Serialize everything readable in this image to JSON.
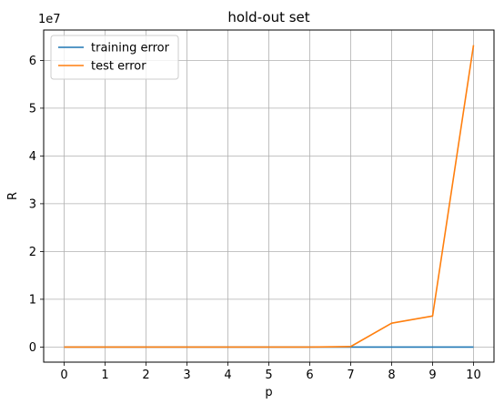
{
  "chart_data": {
    "type": "line",
    "title": "hold-out set",
    "xlabel": "p",
    "ylabel": "R",
    "y_offset_label": "1e7",
    "x": [
      0,
      1,
      2,
      3,
      4,
      5,
      6,
      7,
      8,
      9,
      10
    ],
    "series": [
      {
        "name": "training error",
        "color": "#1f77b4",
        "values": [
          0,
          0,
          0,
          0,
          0,
          0,
          0,
          0,
          0,
          0,
          0
        ]
      },
      {
        "name": "test error",
        "color": "#ff7f0e",
        "values": [
          0,
          0,
          0,
          0,
          0,
          0,
          0,
          100000,
          5000000,
          6500000,
          63200000
        ]
      }
    ],
    "xlim": [
      -0.5,
      10.5
    ],
    "ylim": [
      -3160000,
      66360000
    ],
    "xticks": [
      "0",
      "1",
      "2",
      "3",
      "4",
      "5",
      "6",
      "7",
      "8",
      "9",
      "10"
    ],
    "yticks": [
      0,
      10000000,
      20000000,
      30000000,
      40000000,
      50000000,
      60000000
    ],
    "ytick_labels": [
      "0",
      "1",
      "2",
      "3",
      "4",
      "5",
      "6"
    ],
    "grid": true,
    "legend_position": "upper-left"
  }
}
